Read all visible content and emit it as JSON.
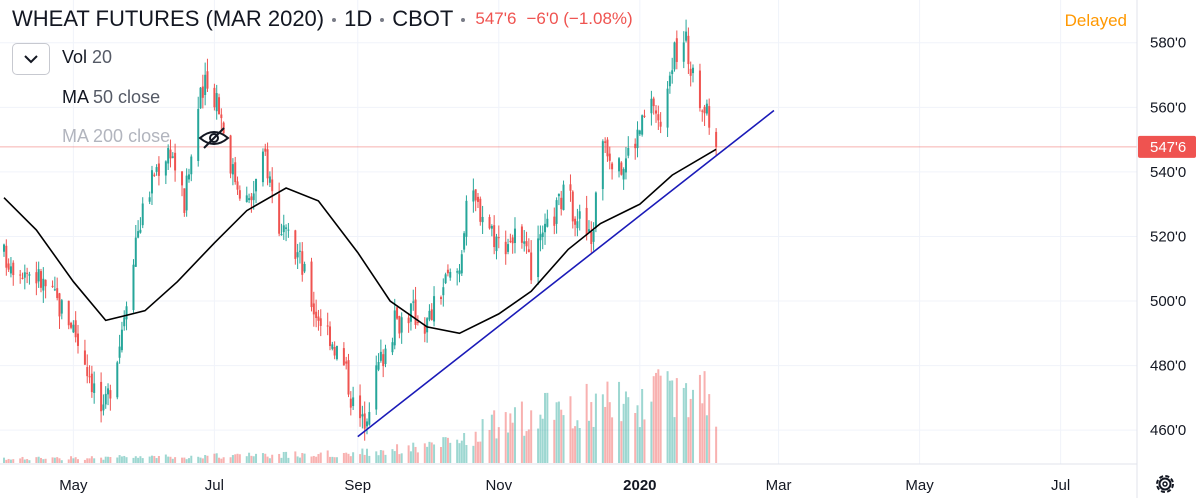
{
  "header": {
    "symbol": "WHEAT FUTURES (MAR 2020)",
    "interval": "1D",
    "exchange": "CBOT",
    "last_price": "547'6",
    "change": "−6'0 (−1.08%)",
    "status": "Delayed"
  },
  "legend": {
    "volume": {
      "label": "Vol",
      "param": "20"
    },
    "ma50": {
      "label": "MA",
      "param": "50 close"
    },
    "ma200": {
      "label": "MA",
      "param": "200 close",
      "hidden": true
    }
  },
  "colors": {
    "up": "#26a69a",
    "down": "#ef5350",
    "ma": "#000000",
    "trendline": "#1a1ab8",
    "grid": "#f0f3fa",
    "price_line": "#ef5350",
    "delayed": "#ff9800"
  },
  "icons": [
    "chevron-down-icon",
    "eye-off-icon",
    "gear-icon"
  ],
  "chart_data": {
    "type": "candlestick",
    "title": "WHEAT FUTURES (MAR 2020)",
    "ylim": [
      452,
      592
    ],
    "yticks": [
      460,
      480,
      500,
      520,
      540,
      560,
      580
    ],
    "ytick_labels": [
      "460'0",
      "480'0",
      "500'0",
      "520'0",
      "540'0",
      "560'0",
      "580'0"
    ],
    "x_range": [
      "2019-04-01",
      "2020-07-31"
    ],
    "xticks": [
      {
        "date": "2019-05-01",
        "label": "May"
      },
      {
        "date": "2019-07-01",
        "label": "Jul"
      },
      {
        "date": "2019-09-01",
        "label": "Sep"
      },
      {
        "date": "2019-11-01",
        "label": "Nov"
      },
      {
        "date": "2020-01-01",
        "label": "2020",
        "bold": true
      },
      {
        "date": "2020-03-01",
        "label": "Mar"
      },
      {
        "date": "2020-05-01",
        "label": "May"
      },
      {
        "date": "2020-07-01",
        "label": "Jul"
      }
    ],
    "current_price": {
      "value": 547.75,
      "label": "547'6"
    },
    "close_path": [
      [
        "2019-04-01",
        514
      ],
      [
        "2019-04-15",
        508
      ],
      [
        "2019-04-30",
        494
      ],
      [
        "2019-05-08",
        478
      ],
      [
        "2019-05-14",
        464
      ],
      [
        "2019-05-21",
        488
      ],
      [
        "2019-05-28",
        520
      ],
      [
        "2019-06-05",
        540
      ],
      [
        "2019-06-12",
        548
      ],
      [
        "2019-06-18",
        530
      ],
      [
        "2019-06-24",
        560
      ],
      [
        "2019-06-27",
        566
      ],
      [
        "2019-07-02",
        564
      ],
      [
        "2019-07-09",
        540
      ],
      [
        "2019-07-16",
        530
      ],
      [
        "2019-07-23",
        545
      ],
      [
        "2019-07-30",
        520
      ],
      [
        "2019-08-06",
        515
      ],
      [
        "2019-08-13",
        498
      ],
      [
        "2019-08-20",
        490
      ],
      [
        "2019-08-27",
        478
      ],
      [
        "2019-08-30",
        468
      ],
      [
        "2019-09-03",
        462
      ],
      [
        "2019-09-10",
        480
      ],
      [
        "2019-09-17",
        493
      ],
      [
        "2019-09-24",
        497
      ],
      [
        "2019-10-01",
        493
      ],
      [
        "2019-10-08",
        505
      ],
      [
        "2019-10-15",
        510
      ],
      [
        "2019-10-18",
        532
      ],
      [
        "2019-10-25",
        528
      ],
      [
        "2019-11-01",
        518
      ],
      [
        "2019-11-08",
        520
      ],
      [
        "2019-11-15",
        510
      ],
      [
        "2019-11-22",
        522
      ],
      [
        "2019-11-29",
        533
      ],
      [
        "2019-12-05",
        527
      ],
      [
        "2019-12-11",
        518
      ],
      [
        "2019-12-16",
        552
      ],
      [
        "2019-12-23",
        540
      ],
      [
        "2019-12-27",
        546
      ],
      [
        "2020-01-03",
        556
      ],
      [
        "2020-01-07",
        562
      ],
      [
        "2020-01-10",
        552
      ],
      [
        "2020-01-14",
        574
      ],
      [
        "2020-01-21",
        580
      ],
      [
        "2020-01-24",
        568
      ],
      [
        "2020-01-28",
        562
      ],
      [
        "2020-02-03",
        547.75
      ]
    ],
    "ma50": [
      [
        "2019-04-01",
        532
      ],
      [
        "2019-04-15",
        522
      ],
      [
        "2019-05-01",
        506
      ],
      [
        "2019-05-15",
        494
      ],
      [
        "2019-06-01",
        497
      ],
      [
        "2019-06-15",
        506
      ],
      [
        "2019-07-01",
        518
      ],
      [
        "2019-07-15",
        528
      ],
      [
        "2019-08-01",
        535
      ],
      [
        "2019-08-15",
        531
      ],
      [
        "2019-09-01",
        515
      ],
      [
        "2019-09-15",
        500
      ],
      [
        "2019-10-01",
        492
      ],
      [
        "2019-10-15",
        490
      ],
      [
        "2019-11-01",
        496
      ],
      [
        "2019-11-15",
        503
      ],
      [
        "2019-12-01",
        516
      ],
      [
        "2019-12-15",
        524
      ],
      [
        "2020-01-01",
        530
      ],
      [
        "2020-01-15",
        539
      ],
      [
        "2020-02-03",
        547
      ]
    ],
    "trendline": [
      [
        "2019-09-01",
        458
      ],
      [
        "2020-02-28",
        559
      ]
    ],
    "volume_profile": [
      [
        "2019-04-01",
        0.04
      ],
      [
        "2019-06-01",
        0.06
      ],
      [
        "2019-08-01",
        0.08
      ],
      [
        "2019-09-01",
        0.1
      ],
      [
        "2019-10-15",
        0.2
      ],
      [
        "2019-11-01",
        0.4
      ],
      [
        "2019-12-01",
        0.55
      ],
      [
        "2020-01-01",
        0.62
      ],
      [
        "2020-01-20",
        0.75
      ],
      [
        "2020-02-03",
        0.6
      ]
    ]
  }
}
